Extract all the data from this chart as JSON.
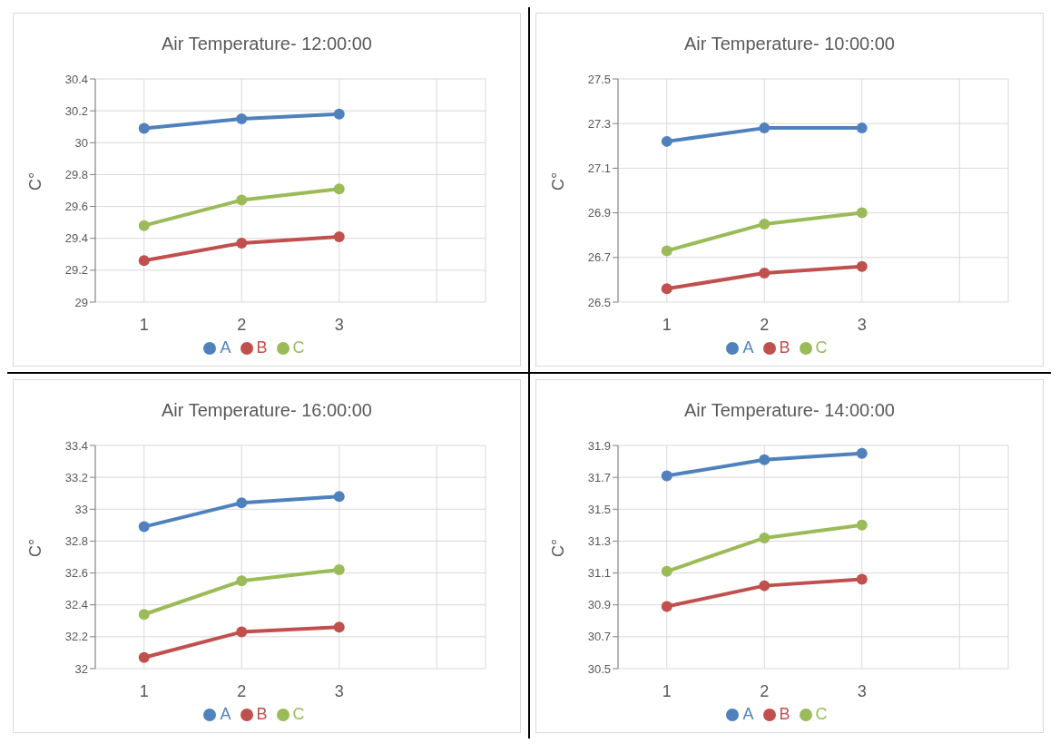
{
  "chart_data": [
    {
      "type": "line",
      "title": "Air Temperature- 12:00:00",
      "ylabel": "C°",
      "categories": [
        "1",
        "2",
        "3",
        null
      ],
      "ylim": [
        29,
        30.4
      ],
      "yticks": [
        29,
        29.2,
        29.4,
        29.6,
        29.8,
        30,
        30.2,
        30.4
      ],
      "grid": true,
      "legend": "bottom",
      "marker": "circle",
      "series": [
        {
          "name": "A",
          "color": "#4f81bd",
          "values": [
            30.09,
            30.15,
            30.18,
            null
          ]
        },
        {
          "name": "B",
          "color": "#c0504d",
          "values": [
            29.26,
            29.37,
            29.41,
            null
          ]
        },
        {
          "name": "C",
          "color": "#9bbb59",
          "values": [
            29.48,
            29.64,
            29.71,
            null
          ]
        }
      ]
    },
    {
      "type": "line",
      "title": "Air Temperature- 10:00:00",
      "ylabel": "C°",
      "categories": [
        "1",
        "2",
        "3",
        null
      ],
      "ylim": [
        26.5,
        27.5
      ],
      "yticks": [
        26.5,
        26.7,
        26.9,
        27.1,
        27.3,
        27.5
      ],
      "grid": true,
      "legend": "bottom",
      "marker": "circle",
      "series": [
        {
          "name": "A",
          "color": "#4f81bd",
          "values": [
            27.22,
            27.28,
            27.28,
            null
          ]
        },
        {
          "name": "B",
          "color": "#c0504d",
          "values": [
            26.56,
            26.63,
            26.66,
            null
          ]
        },
        {
          "name": "C",
          "color": "#9bbb59",
          "values": [
            26.73,
            26.85,
            26.9,
            null
          ]
        }
      ]
    },
    {
      "type": "line",
      "title": "Air Temperature- 16:00:00",
      "ylabel": "C°",
      "categories": [
        "1",
        "2",
        "3",
        null
      ],
      "ylim": [
        32,
        33.4
      ],
      "yticks": [
        32,
        32.2,
        32.4,
        32.6,
        32.8,
        33,
        33.2,
        33.4
      ],
      "grid": true,
      "legend": "bottom",
      "marker": "circle",
      "series": [
        {
          "name": "A",
          "color": "#4f81bd",
          "values": [
            32.89,
            33.04,
            33.08,
            null
          ]
        },
        {
          "name": "B",
          "color": "#c0504d",
          "values": [
            32.07,
            32.23,
            32.26,
            null
          ]
        },
        {
          "name": "C",
          "color": "#9bbb59",
          "values": [
            32.34,
            32.55,
            32.62,
            null
          ]
        }
      ]
    },
    {
      "type": "line",
      "title": "Air Temperature- 14:00:00",
      "ylabel": "C°",
      "categories": [
        "1",
        "2",
        "3",
        null
      ],
      "ylim": [
        30.5,
        31.9
      ],
      "yticks": [
        30.5,
        30.7,
        30.9,
        31.1,
        31.3,
        31.5,
        31.7,
        31.9
      ],
      "grid": true,
      "legend": "bottom",
      "marker": "circle",
      "series": [
        {
          "name": "A",
          "color": "#4f81bd",
          "values": [
            31.71,
            31.81,
            31.85,
            null
          ]
        },
        {
          "name": "B",
          "color": "#c0504d",
          "values": [
            30.89,
            31.02,
            31.06,
            null
          ]
        },
        {
          "name": "C",
          "color": "#9bbb59",
          "values": [
            31.11,
            31.32,
            31.4,
            null
          ]
        }
      ]
    }
  ]
}
